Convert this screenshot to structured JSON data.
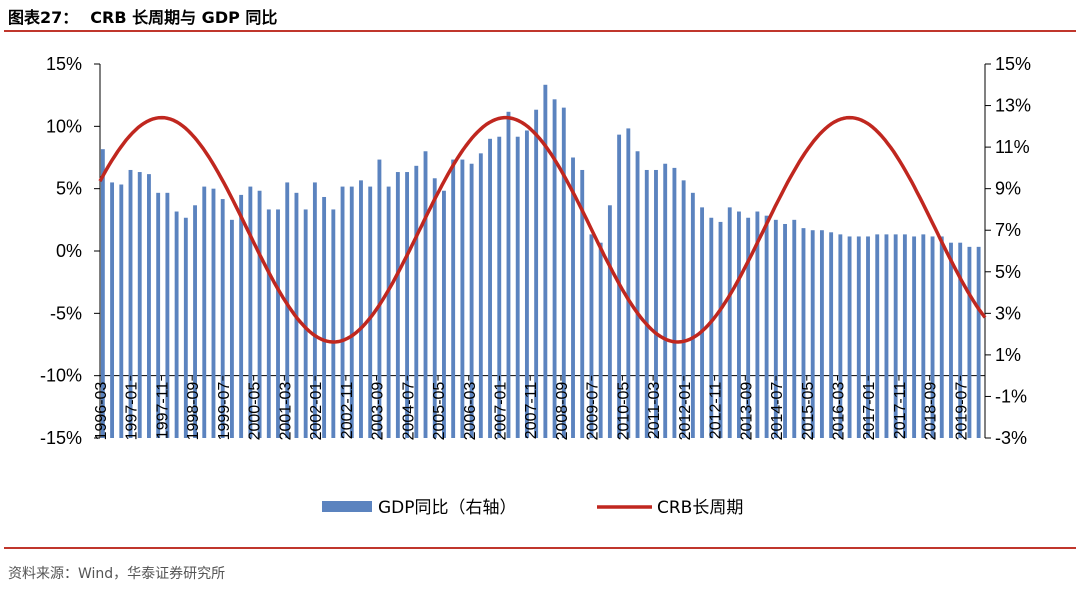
{
  "header": {
    "fig_label": "图表27：",
    "title": "CRB 长周期与 GDP 同比"
  },
  "source": "资料来源：Wind，华泰证券研究所",
  "colors": {
    "bar": "#5b83bf",
    "line": "#c0271f",
    "rule": "#c0362c"
  },
  "chart_data": {
    "type": "bar+line",
    "title": "CRB 长周期与 GDP 同比",
    "y_left": {
      "min": -15,
      "max": 15,
      "ticks": [
        "15%",
        "10%",
        "5%",
        "0%",
        "-5%",
        "-10%",
        "-15%"
      ]
    },
    "y_right": {
      "min": -3,
      "max": 15,
      "ticks": [
        "15%",
        "13%",
        "11%",
        "9%",
        "7%",
        "5%",
        "3%",
        "1%",
        "-1%",
        "-3%"
      ]
    },
    "x_ticks": [
      "1996-03",
      "1997-01",
      "1997-11",
      "1998-09",
      "1999-07",
      "2000-05",
      "2001-03",
      "2002-01",
      "2002-11",
      "2003-09",
      "2004-07",
      "2005-05",
      "2006-03",
      "2007-01",
      "2007-11",
      "2008-09",
      "2009-07",
      "2010-05",
      "2011-03",
      "2012-01",
      "2012-11",
      "2013-09",
      "2014-07",
      "2015-05",
      "2016-03",
      "2017-01",
      "2017-11",
      "2018-09",
      "2019-07"
    ],
    "legend": [
      {
        "name": "GDP同比（右轴）",
        "kind": "bar"
      },
      {
        "name": "CRB长周期",
        "kind": "line"
      }
    ],
    "series": [
      {
        "name": "GDP同比（右轴）",
        "axis": "right",
        "type": "bar",
        "values": [
          10.9,
          9.3,
          9.2,
          9.9,
          9.8,
          9.7,
          8.8,
          8.8,
          7.9,
          7.6,
          8.2,
          9.1,
          9.0,
          8.5,
          7.5,
          8.7,
          9.1,
          8.9,
          8.0,
          8.0,
          9.3,
          8.8,
          8.0,
          9.3,
          8.6,
          8.0,
          9.1,
          9.1,
          9.4,
          9.1,
          10.4,
          9.1,
          9.8,
          9.8,
          10.1,
          10.8,
          9.5,
          8.9,
          10.4,
          10.4,
          10.2,
          10.7,
          11.4,
          11.5,
          12.7,
          11.5,
          11.8,
          12.8,
          14.0,
          13.3,
          12.9,
          10.5,
          9.9,
          6.8,
          6.4,
          8.2,
          11.6,
          11.9,
          10.8,
          9.9,
          9.9,
          10.2,
          10.0,
          9.4,
          8.8,
          8.1,
          7.6,
          7.4,
          8.1,
          7.9,
          7.6,
          7.9,
          7.7,
          7.5,
          7.3,
          7.5,
          7.1,
          7.0,
          7.0,
          6.9,
          6.8,
          6.7,
          6.7,
          6.7,
          6.8,
          6.8,
          6.8,
          6.8,
          6.7,
          6.8,
          6.7,
          6.7,
          6.4,
          6.4,
          6.2,
          6.2
        ]
      },
      {
        "name": "CRB长周期",
        "axis": "left",
        "type": "line",
        "cycle": {
          "amplitude": 9,
          "center": 1.7,
          "period_months": 112,
          "peak_date": "2007-03"
        }
      }
    ]
  }
}
